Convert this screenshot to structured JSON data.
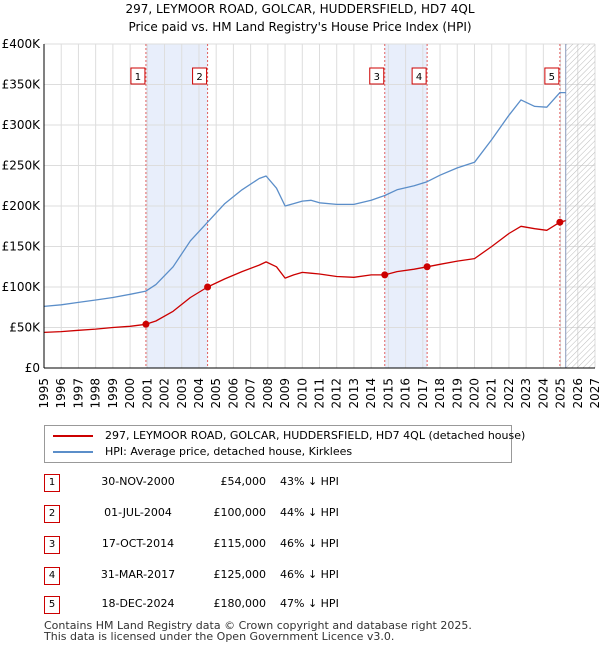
{
  "title": {
    "line1": "297, LEYMOOR ROAD, GOLCAR, HUDDERSFIELD, HD7 4QL",
    "line2": "Price paid vs. HM Land Registry's House Price Index (HPI)"
  },
  "colors": {
    "property": "#cc0000",
    "hpi": "#5b8ec9",
    "sale_shade": "#e8eefb",
    "grid": "#dddddd",
    "marker_line": "#e06060",
    "marker_box": "#cc0000"
  },
  "chart_data": {
    "type": "line",
    "title": "Price paid vs. HM Land Registry's House Price Index (HPI)",
    "xlabel": "",
    "ylabel": "",
    "xlim": [
      1995,
      2027
    ],
    "ylim": [
      0,
      400000
    ],
    "x_ticks": [
      1995,
      1996,
      1997,
      1998,
      1999,
      2000,
      2001,
      2002,
      2003,
      2004,
      2005,
      2006,
      2007,
      2008,
      2009,
      2010,
      2011,
      2012,
      2013,
      2014,
      2015,
      2016,
      2017,
      2018,
      2019,
      2020,
      2021,
      2022,
      2023,
      2024,
      2025,
      2026,
      2027
    ],
    "y_ticks": [
      {
        "value": 0,
        "label": "£0"
      },
      {
        "value": 50000,
        "label": "£50K"
      },
      {
        "value": 100000,
        "label": "£100K"
      },
      {
        "value": 150000,
        "label": "£150K"
      },
      {
        "value": 200000,
        "label": "£200K"
      },
      {
        "value": 250000,
        "label": "£250K"
      },
      {
        "value": 300000,
        "label": "£300K"
      },
      {
        "value": 350000,
        "label": "£350K"
      },
      {
        "value": 400000,
        "label": "£400K"
      }
    ],
    "shaded_periods": [
      [
        2000.92,
        2004.5
      ],
      [
        2014.79,
        2017.25
      ]
    ],
    "forecast_start": 2025.3,
    "series": [
      {
        "name": "297, LEYMOOR ROAD, GOLCAR, HUDDERSFIELD, HD7 4QL (detached house)",
        "color": "#cc0000",
        "points": [
          [
            1995.0,
            44000
          ],
          [
            1996.0,
            45000
          ],
          [
            1997.0,
            46500
          ],
          [
            1998.0,
            48000
          ],
          [
            1999.0,
            50000
          ],
          [
            2000.0,
            51500
          ],
          [
            2000.92,
            54000
          ],
          [
            2001.5,
            58000
          ],
          [
            2002.5,
            70000
          ],
          [
            2003.5,
            87000
          ],
          [
            2004.5,
            100000
          ],
          [
            2005.5,
            110000
          ],
          [
            2006.5,
            119000
          ],
          [
            2007.5,
            127000
          ],
          [
            2007.9,
            131000
          ],
          [
            2008.5,
            125000
          ],
          [
            2009.0,
            111000
          ],
          [
            2009.5,
            115000
          ],
          [
            2010.0,
            118000
          ],
          [
            2010.5,
            117000
          ],
          [
            2011.0,
            116000
          ],
          [
            2012.0,
            113000
          ],
          [
            2013.0,
            112000
          ],
          [
            2014.0,
            115000
          ],
          [
            2014.79,
            115000
          ],
          [
            2015.5,
            119000
          ],
          [
            2016.5,
            122000
          ],
          [
            2017.25,
            125000
          ],
          [
            2018.0,
            128000
          ],
          [
            2019.0,
            132000
          ],
          [
            2020.0,
            135000
          ],
          [
            2021.0,
            150000
          ],
          [
            2022.0,
            166000
          ],
          [
            2022.7,
            175000
          ],
          [
            2023.5,
            172000
          ],
          [
            2024.2,
            170000
          ],
          [
            2024.96,
            180000
          ],
          [
            2025.3,
            182000
          ]
        ]
      },
      {
        "name": "HPI: Average price, detached house, Kirklees",
        "color": "#5b8ec9",
        "points": [
          [
            1995.0,
            76000
          ],
          [
            1996.0,
            78000
          ],
          [
            1997.0,
            81000
          ],
          [
            1998.0,
            84000
          ],
          [
            1999.0,
            87000
          ],
          [
            2000.0,
            91000
          ],
          [
            2000.92,
            95000
          ],
          [
            2001.5,
            103000
          ],
          [
            2002.5,
            125000
          ],
          [
            2003.5,
            157000
          ],
          [
            2004.5,
            180000
          ],
          [
            2005.5,
            203000
          ],
          [
            2006.5,
            220000
          ],
          [
            2007.5,
            234000
          ],
          [
            2007.9,
            237000
          ],
          [
            2008.5,
            222000
          ],
          [
            2009.0,
            200000
          ],
          [
            2009.5,
            203000
          ],
          [
            2010.0,
            206000
          ],
          [
            2010.5,
            207000
          ],
          [
            2011.0,
            204000
          ],
          [
            2012.0,
            202000
          ],
          [
            2013.0,
            202000
          ],
          [
            2014.0,
            207000
          ],
          [
            2014.79,
            213000
          ],
          [
            2015.5,
            220000
          ],
          [
            2016.5,
            225000
          ],
          [
            2017.25,
            230000
          ],
          [
            2018.0,
            238000
          ],
          [
            2019.0,
            247000
          ],
          [
            2020.0,
            254000
          ],
          [
            2021.0,
            282000
          ],
          [
            2022.0,
            312000
          ],
          [
            2022.7,
            331000
          ],
          [
            2023.5,
            323000
          ],
          [
            2024.2,
            322000
          ],
          [
            2024.96,
            340000
          ],
          [
            2025.3,
            340000
          ]
        ]
      }
    ],
    "markers": [
      {
        "label": "1",
        "x": 2000.92,
        "y": 54000
      },
      {
        "label": "2",
        "x": 2004.5,
        "y": 100000
      },
      {
        "label": "3",
        "x": 2014.79,
        "y": 115000
      },
      {
        "label": "4",
        "x": 2017.25,
        "y": 125000
      },
      {
        "label": "5",
        "x": 2024.96,
        "y": 180000
      }
    ]
  },
  "legend": {
    "property_label": "297, LEYMOOR ROAD, GOLCAR, HUDDERSFIELD, HD7 4QL (detached house)",
    "hpi_label": "HPI: Average price, detached house, Kirklees"
  },
  "sales": [
    {
      "num": "1",
      "date": "30-NOV-2000",
      "price": "£54,000",
      "hpi": "43% ↓ HPI"
    },
    {
      "num": "2",
      "date": "01-JUL-2004",
      "price": "£100,000",
      "hpi": "44% ↓ HPI"
    },
    {
      "num": "3",
      "date": "17-OCT-2014",
      "price": "£115,000",
      "hpi": "46% ↓ HPI"
    },
    {
      "num": "4",
      "date": "31-MAR-2017",
      "price": "£125,000",
      "hpi": "46% ↓ HPI"
    },
    {
      "num": "5",
      "date": "18-DEC-2024",
      "price": "£180,000",
      "hpi": "47% ↓ HPI"
    }
  ],
  "footer": {
    "line1": "Contains HM Land Registry data © Crown copyright and database right 2025.",
    "line2": "This data is licensed under the Open Government Licence v3.0."
  }
}
